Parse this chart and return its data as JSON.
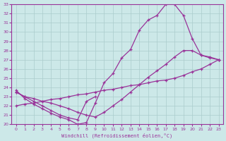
{
  "xlabel": "Windchill (Refroidissement éolien,°C)",
  "bg_color": "#cce8e8",
  "line_color": "#993399",
  "grid_color": "#aacccc",
  "xlim": [
    -0.5,
    23.5
  ],
  "ylim": [
    20,
    33
  ],
  "xticks": [
    0,
    1,
    2,
    3,
    4,
    5,
    6,
    7,
    8,
    9,
    10,
    11,
    12,
    13,
    14,
    15,
    16,
    17,
    18,
    19,
    20,
    21,
    22,
    23
  ],
  "yticks": [
    20,
    21,
    22,
    23,
    24,
    25,
    26,
    27,
    28,
    29,
    30,
    31,
    32,
    33
  ],
  "line1_x": [
    0,
    1,
    2,
    3,
    4,
    5,
    6,
    7,
    8,
    9,
    10,
    11,
    12,
    13,
    14,
    15,
    16,
    17,
    18,
    19,
    20,
    21,
    22,
    23
  ],
  "line1_y": [
    23.7,
    22.8,
    22.2,
    21.7,
    21.2,
    20.8,
    20.5,
    20.0,
    20.2,
    22.3,
    24.5,
    25.5,
    27.2,
    28.1,
    30.2,
    31.3,
    31.8,
    33.0,
    33.0,
    31.8,
    29.3,
    27.5,
    27.3,
    27.0
  ],
  "line2_x": [
    0,
    1,
    2,
    3,
    4,
    5,
    6,
    7,
    8,
    9,
    10,
    11,
    12,
    13,
    14,
    15,
    16,
    17,
    18,
    19,
    20,
    21,
    22,
    23
  ],
  "line2_y": [
    23.5,
    23.0,
    22.8,
    22.5,
    22.3,
    22.0,
    21.7,
    21.3,
    21.0,
    20.8,
    21.3,
    22.0,
    22.7,
    23.5,
    24.3,
    25.1,
    25.8,
    26.5,
    27.3,
    28.0,
    28.0,
    27.5,
    27.2,
    27.0
  ],
  "line3_x": [
    0,
    1,
    2,
    3,
    4,
    5,
    6,
    7,
    8,
    9,
    10,
    11,
    12,
    13,
    14,
    15,
    16,
    17,
    18,
    19,
    20,
    21,
    22,
    23
  ],
  "line3_y": [
    22.0,
    22.2,
    22.3,
    22.5,
    22.7,
    22.8,
    23.0,
    23.2,
    23.3,
    23.5,
    23.7,
    23.8,
    24.0,
    24.2,
    24.3,
    24.5,
    24.7,
    24.8,
    25.0,
    25.3,
    25.7,
    26.0,
    26.5,
    27.0
  ],
  "line4_x": [
    0,
    1,
    2,
    3,
    4,
    5,
    6,
    7,
    8,
    9
  ],
  "line4_y": [
    23.5,
    23.0,
    22.5,
    22.0,
    21.5,
    21.0,
    20.7,
    20.5,
    22.5,
    23.0
  ]
}
